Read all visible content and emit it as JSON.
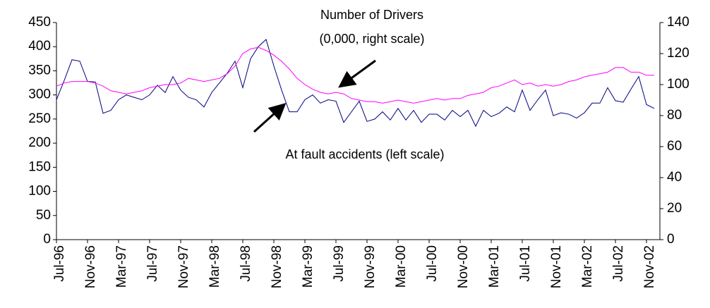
{
  "chart_data": {
    "type": "line",
    "categories": [
      "Jul-96",
      null,
      null,
      null,
      "Nov-96",
      null,
      null,
      null,
      "Mar-97",
      null,
      null,
      null,
      "Jul-97",
      null,
      null,
      null,
      "Nov-97",
      null,
      null,
      null,
      "Mar-98",
      null,
      null,
      null,
      "Jul-98",
      null,
      null,
      null,
      "Nov-98",
      null,
      null,
      null,
      "Mar-99",
      null,
      null,
      null,
      "Jul-99",
      null,
      null,
      null,
      "Nov-99",
      null,
      null,
      null,
      "Mar-00",
      null,
      null,
      null,
      "Jul-00",
      null,
      null,
      null,
      "Nov-00",
      null,
      null,
      null,
      "Mar-01",
      null,
      null,
      null,
      "Jul-01",
      null,
      null,
      null,
      "Nov-01",
      null,
      null,
      null,
      "Mar-02",
      null,
      null,
      null,
      "Jul-02",
      null,
      null,
      null,
      "Nov-02",
      null
    ],
    "series": [
      {
        "color": "#000080",
        "axis": "y",
        "values": [
          290,
          330,
          373,
          370,
          328,
          327,
          262,
          268,
          290,
          300,
          295,
          290,
          300,
          320,
          305,
          338,
          310,
          295,
          290,
          275,
          305,
          325,
          345,
          370,
          315,
          375,
          400,
          415,
          360,
          310,
          265,
          265,
          290,
          300,
          283,
          290,
          287,
          243,
          265,
          287,
          245,
          250,
          265,
          248,
          272,
          248,
          268,
          243,
          260,
          260,
          248,
          268,
          255,
          268,
          235,
          268,
          255,
          262,
          275,
          265,
          310,
          268,
          290,
          310,
          257,
          263,
          260,
          252,
          263,
          283,
          283,
          315,
          288,
          285,
          312,
          338,
          280,
          272
        ]
      },
      {
        "color": "#ff00ff",
        "axis": "y2",
        "values": [
          99,
          101,
          102,
          102,
          102,
          101,
          99,
          96,
          95,
          94,
          95,
          96,
          98,
          99,
          100,
          100,
          101,
          104,
          103,
          102,
          103,
          104,
          107,
          112,
          120,
          123,
          124,
          122,
          119,
          115,
          110,
          104,
          100,
          97,
          95,
          94,
          95,
          94,
          91,
          90,
          89,
          89,
          88,
          89,
          90,
          89,
          88,
          89,
          90,
          91,
          90,
          91,
          91,
          93,
          94,
          95,
          98,
          99,
          101,
          103,
          100,
          101,
          99,
          100,
          99,
          100,
          102,
          103,
          105,
          106,
          107,
          108,
          111,
          111,
          108,
          108,
          106,
          106
        ]
      }
    ],
    "ylim": [
      0,
      450
    ],
    "yticks": [
      0,
      50,
      100,
      150,
      200,
      250,
      300,
      350,
      400,
      450
    ],
    "y2lim": [
      0,
      140
    ],
    "y2ticks": [
      0,
      20,
      40,
      60,
      80,
      100,
      120,
      140
    ],
    "grid": false,
    "annotations": [
      "Number of Drivers",
      "(0,000, right scale)",
      "At fault accidents (left scale)"
    ]
  }
}
